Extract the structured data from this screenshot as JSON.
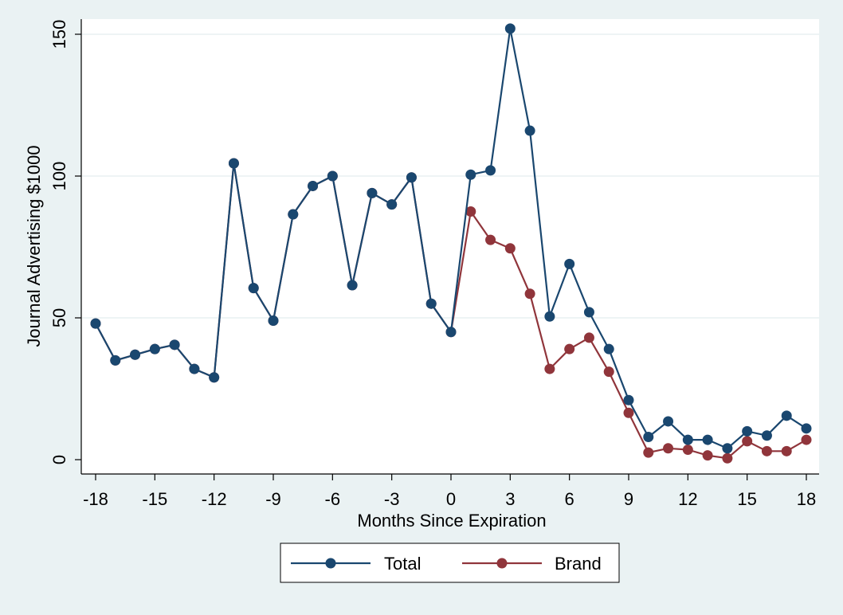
{
  "chart_data": {
    "type": "line",
    "xlabel": "Months Since Expiration",
    "ylabel": "Journal Advertising $1000",
    "xlim": [
      -18,
      18
    ],
    "ylim": [
      0,
      150
    ],
    "x_ticks": [
      -18,
      -15,
      -12,
      -9,
      -6,
      -3,
      0,
      3,
      6,
      9,
      12,
      15,
      18
    ],
    "y_ticks": [
      0,
      50,
      100,
      150
    ],
    "grid": true,
    "legend_position": "bottom",
    "x": [
      -18,
      -17,
      -16,
      -15,
      -14,
      -13,
      -12,
      -11,
      -10,
      -9,
      -8,
      -7,
      -6,
      -5,
      -4,
      -3,
      -2,
      -1,
      0,
      1,
      2,
      3,
      4,
      5,
      6,
      7,
      8,
      9,
      10,
      11,
      12,
      13,
      14,
      15,
      16,
      17,
      18
    ],
    "series": [
      {
        "name": "Total",
        "color": "#1a476f",
        "values": [
          48,
          35,
          37,
          39,
          40.5,
          32,
          29,
          104.5,
          60.5,
          49,
          86.5,
          96.5,
          100,
          61.5,
          94,
          90,
          99.5,
          55,
          45,
          100.5,
          102,
          152,
          116,
          50.5,
          69,
          52,
          39,
          21,
          8,
          13.5,
          7,
          7,
          4,
          10,
          8.5,
          15.5,
          11
        ]
      },
      {
        "name": "Brand",
        "color": "#90353b",
        "values": [
          48,
          35,
          37,
          39,
          40.5,
          32,
          29,
          104.5,
          60.5,
          49,
          86.5,
          96.5,
          100,
          61.5,
          94,
          90,
          99.5,
          55,
          45,
          87.5,
          77.5,
          74.5,
          58.5,
          32,
          39,
          43,
          31,
          16.5,
          2.5,
          4,
          3.5,
          1.5,
          0.5,
          6.5,
          3,
          3,
          7
        ]
      }
    ]
  }
}
